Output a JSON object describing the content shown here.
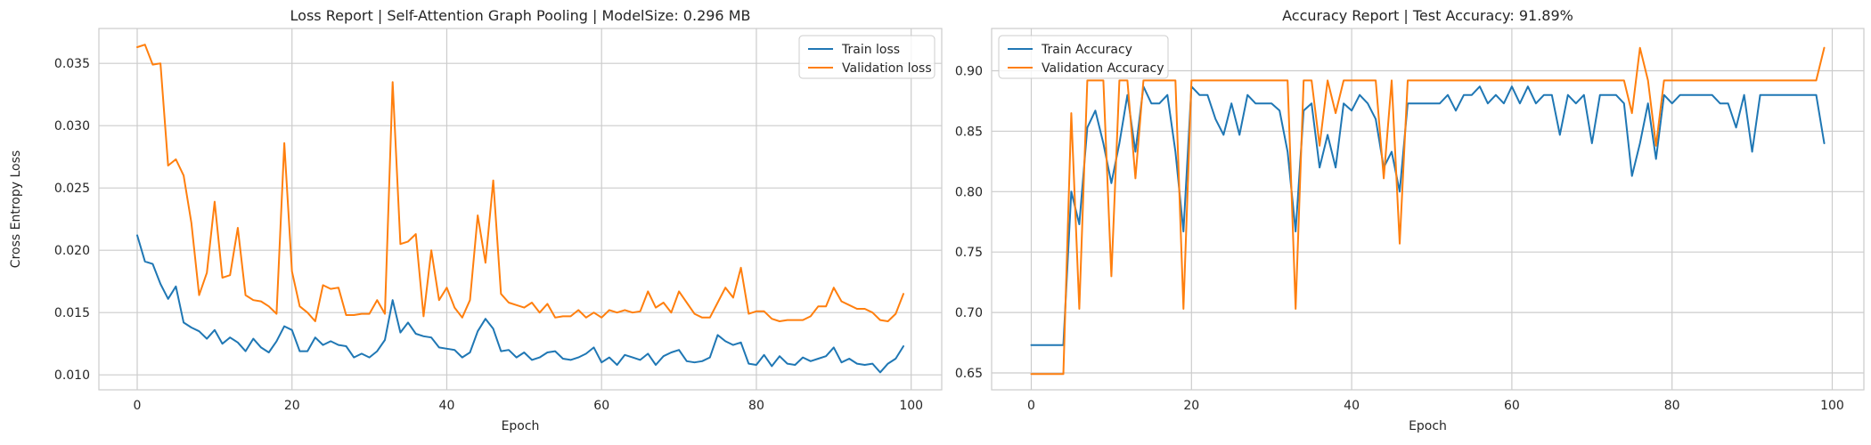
{
  "chart_data": [
    {
      "type": "line",
      "title": "Loss Report | Self-Attention Graph Pooling | ModelSize: 0.296 MB",
      "xlabel": "Epoch",
      "ylabel": "Cross Entropy Loss",
      "xlim": [
        -4.95,
        103.95
      ],
      "ylim": [
        0.0088,
        0.0378
      ],
      "xticks": [
        0,
        20,
        40,
        60,
        80,
        100
      ],
      "xtick_labels": [
        "0",
        "20",
        "40",
        "60",
        "80",
        "100"
      ],
      "yticks": [
        0.01,
        0.015,
        0.02,
        0.025,
        0.03,
        0.035
      ],
      "ytick_labels": [
        "0.010",
        "0.015",
        "0.020",
        "0.025",
        "0.030",
        "0.035"
      ],
      "grid": true,
      "legend_position": "top-right",
      "series": [
        {
          "name": "Train loss",
          "color": "#1f77b4",
          "x_start": 0,
          "values": [
            0.0212,
            0.0191,
            0.0189,
            0.0173,
            0.0161,
            0.0171,
            0.0142,
            0.0138,
            0.0135,
            0.0129,
            0.0136,
            0.0125,
            0.013,
            0.0126,
            0.0119,
            0.0129,
            0.0122,
            0.0118,
            0.0127,
            0.0139,
            0.0136,
            0.0119,
            0.0119,
            0.013,
            0.0124,
            0.0127,
            0.0124,
            0.0123,
            0.0114,
            0.0117,
            0.0114,
            0.0119,
            0.0128,
            0.016,
            0.0134,
            0.0142,
            0.0133,
            0.0131,
            0.013,
            0.0122,
            0.0121,
            0.012,
            0.0114,
            0.0118,
            0.0135,
            0.0145,
            0.0137,
            0.0119,
            0.012,
            0.0114,
            0.0118,
            0.0112,
            0.0114,
            0.0118,
            0.0119,
            0.0113,
            0.0112,
            0.0114,
            0.0117,
            0.0122,
            0.011,
            0.0114,
            0.0108,
            0.0116,
            0.0114,
            0.0112,
            0.0117,
            0.0108,
            0.0115,
            0.0118,
            0.012,
            0.0111,
            0.011,
            0.0111,
            0.0114,
            0.0132,
            0.0127,
            0.0124,
            0.0126,
            0.0109,
            0.0108,
            0.0116,
            0.0107,
            0.0115,
            0.0109,
            0.0108,
            0.0114,
            0.0111,
            0.0113,
            0.0115,
            0.0122,
            0.011,
            0.0113,
            0.0109,
            0.0108,
            0.0109,
            0.0102,
            0.0109,
            0.0113,
            0.0123
          ]
        },
        {
          "name": "Validation loss",
          "color": "#ff7f0e",
          "x_start": 0,
          "values": [
            0.0363,
            0.0365,
            0.0349,
            0.035,
            0.0268,
            0.0273,
            0.026,
            0.0222,
            0.0164,
            0.0182,
            0.0239,
            0.0178,
            0.018,
            0.0218,
            0.0164,
            0.016,
            0.0159,
            0.0155,
            0.0149,
            0.0286,
            0.0183,
            0.0155,
            0.015,
            0.0143,
            0.0172,
            0.0169,
            0.017,
            0.0148,
            0.0148,
            0.0149,
            0.0149,
            0.016,
            0.0149,
            0.0335,
            0.0205,
            0.0207,
            0.0213,
            0.0147,
            0.02,
            0.016,
            0.017,
            0.0154,
            0.0146,
            0.016,
            0.0228,
            0.019,
            0.0256,
            0.0165,
            0.0158,
            0.0156,
            0.0154,
            0.0158,
            0.015,
            0.0157,
            0.0146,
            0.0147,
            0.0147,
            0.0152,
            0.0146,
            0.015,
            0.0146,
            0.0152,
            0.015,
            0.0152,
            0.015,
            0.0151,
            0.0167,
            0.0154,
            0.0158,
            0.015,
            0.0167,
            0.0158,
            0.0149,
            0.0146,
            0.0146,
            0.0158,
            0.017,
            0.0162,
            0.0186,
            0.0149,
            0.0151,
            0.0151,
            0.0145,
            0.0143,
            0.0144,
            0.0144,
            0.0144,
            0.0147,
            0.0155,
            0.0155,
            0.017,
            0.0159,
            0.0156,
            0.0153,
            0.0153,
            0.015,
            0.0144,
            0.0143,
            0.0149,
            0.0165
          ]
        }
      ]
    },
    {
      "type": "line",
      "title": "Accuracy Report | Test Accuracy: 91.89%",
      "xlabel": "Epoch",
      "ylabel": "",
      "xlim": [
        -4.95,
        103.95
      ],
      "ylim": [
        0.636,
        0.935
      ],
      "xticks": [
        0,
        20,
        40,
        60,
        80,
        100
      ],
      "xtick_labels": [
        "0",
        "20",
        "40",
        "60",
        "80",
        "100"
      ],
      "yticks": [
        0.65,
        0.7,
        0.75,
        0.8,
        0.85,
        0.9
      ],
      "ytick_labels": [
        "0.65",
        "0.70",
        "0.75",
        "0.80",
        "0.85",
        "0.90"
      ],
      "grid": true,
      "legend_position": "top-left",
      "series": [
        {
          "name": "Train Accuracy",
          "color": "#1f77b4",
          "x_start": 0,
          "values": [
            0.673,
            0.673,
            0.673,
            0.673,
            0.673,
            0.8,
            0.773,
            0.853,
            0.867,
            0.84,
            0.807,
            0.84,
            0.88,
            0.833,
            0.887,
            0.873,
            0.873,
            0.88,
            0.833,
            0.767,
            0.887,
            0.88,
            0.88,
            0.86,
            0.847,
            0.873,
            0.847,
            0.88,
            0.873,
            0.873,
            0.873,
            0.867,
            0.833,
            0.767,
            0.867,
            0.873,
            0.82,
            0.847,
            0.82,
            0.873,
            0.867,
            0.88,
            0.873,
            0.86,
            0.82,
            0.833,
            0.8,
            0.873,
            0.873,
            0.873,
            0.873,
            0.873,
            0.88,
            0.867,
            0.88,
            0.88,
            0.887,
            0.873,
            0.88,
            0.873,
            0.887,
            0.873,
            0.887,
            0.873,
            0.88,
            0.88,
            0.847,
            0.88,
            0.873,
            0.88,
            0.84,
            0.88,
            0.88,
            0.88,
            0.873,
            0.813,
            0.84,
            0.873,
            0.827,
            0.88,
            0.873,
            0.88,
            0.88,
            0.88,
            0.88,
            0.88,
            0.873,
            0.873,
            0.853,
            0.88,
            0.833,
            0.88,
            0.88,
            0.88,
            0.88,
            0.88,
            0.88,
            0.88,
            0.88,
            0.84
          ]
        },
        {
          "name": "Validation Accuracy",
          "color": "#ff7f0e",
          "x_start": 0,
          "values": [
            0.649,
            0.649,
            0.649,
            0.649,
            0.649,
            0.865,
            0.703,
            0.892,
            0.892,
            0.892,
            0.73,
            0.892,
            0.892,
            0.811,
            0.892,
            0.892,
            0.892,
            0.892,
            0.892,
            0.703,
            0.892,
            0.892,
            0.892,
            0.892,
            0.892,
            0.892,
            0.892,
            0.892,
            0.892,
            0.892,
            0.892,
            0.892,
            0.892,
            0.703,
            0.892,
            0.892,
            0.838,
            0.892,
            0.865,
            0.892,
            0.892,
            0.892,
            0.892,
            0.892,
            0.811,
            0.892,
            0.757,
            0.892,
            0.892,
            0.892,
            0.892,
            0.892,
            0.892,
            0.892,
            0.892,
            0.892,
            0.892,
            0.892,
            0.892,
            0.892,
            0.892,
            0.892,
            0.892,
            0.892,
            0.892,
            0.892,
            0.892,
            0.892,
            0.892,
            0.892,
            0.892,
            0.892,
            0.892,
            0.892,
            0.892,
            0.865,
            0.919,
            0.892,
            0.838,
            0.892,
            0.892,
            0.892,
            0.892,
            0.892,
            0.892,
            0.892,
            0.892,
            0.892,
            0.892,
            0.892,
            0.892,
            0.892,
            0.892,
            0.892,
            0.892,
            0.892,
            0.892,
            0.892,
            0.892,
            0.919
          ]
        }
      ]
    }
  ]
}
